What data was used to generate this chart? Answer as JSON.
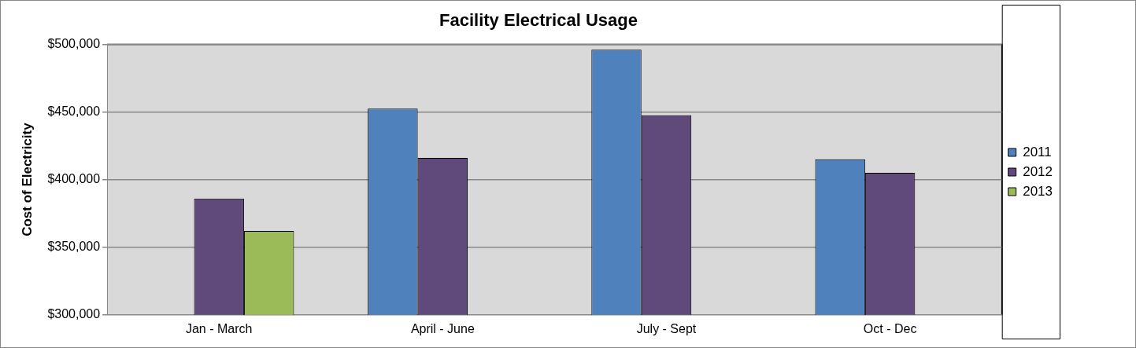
{
  "chart_data": {
    "type": "bar",
    "title": "Facility Electrical Usage",
    "ylabel": "Cost of Electricity",
    "categories": [
      "Jan - March",
      "April - June",
      "July - Sept",
      "Oct - Dec"
    ],
    "series": [
      {
        "name": "2011",
        "color": "#4f81bd",
        "values": [
          null,
          452500,
          496000,
          415000
        ]
      },
      {
        "name": "2012",
        "color": "#604a7b",
        "values": [
          386000,
          416000,
          447500,
          405000
        ]
      },
      {
        "name": "2013",
        "color": "#9bbb59",
        "values": [
          362000,
          null,
          null,
          null
        ]
      }
    ],
    "ylim": [
      300000,
      500000
    ],
    "yticks": [
      {
        "value": 300000,
        "label": "$300,000"
      },
      {
        "value": 350000,
        "label": "$350,000"
      },
      {
        "value": 400000,
        "label": "$400,000"
      },
      {
        "value": 450000,
        "label": "$450,000"
      },
      {
        "value": 500000,
        "label": "$500,000"
      }
    ],
    "grid": "y",
    "legend": "right"
  }
}
